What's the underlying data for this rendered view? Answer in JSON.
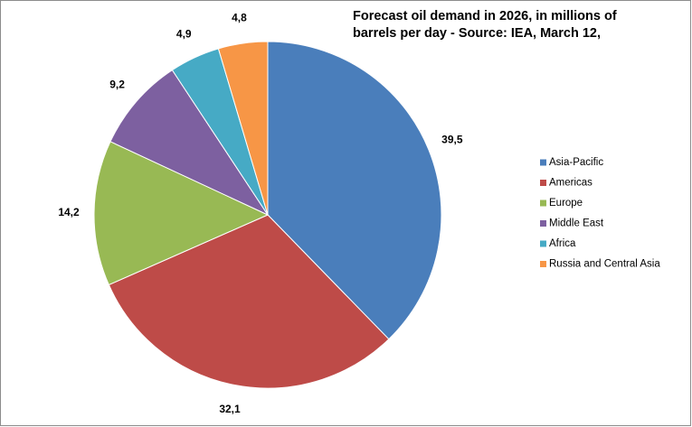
{
  "chart_data": {
    "type": "pie",
    "title": [
      "Forecast oil demand in 2026, in millions of",
      "barrels per day - Source: IEA, March 12,"
    ],
    "categories": [
      "Asia-Pacific",
      "Americas",
      "Europe",
      "Middle East",
      "Africa",
      "Russia and Central Asia"
    ],
    "values": [
      39.5,
      32.1,
      14.2,
      9.2,
      4.9,
      4.8
    ],
    "value_labels": [
      "39,5",
      "32,1",
      "14,2",
      "9,2",
      "4,9",
      "4,8"
    ],
    "colors": [
      "#4a7ebb",
      "#be4b48",
      "#98b954",
      "#7d60a0",
      "#46aac5",
      "#f79646"
    ],
    "legend": "right"
  }
}
